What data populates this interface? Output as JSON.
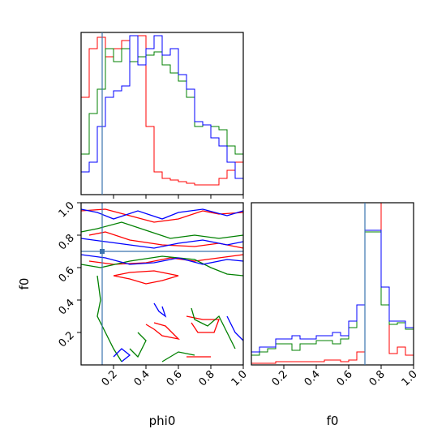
{
  "chart_data": {
    "type": "corner",
    "parameters": [
      "phi0",
      "f0"
    ],
    "xlabel": "phi0",
    "ylabel": "f0",
    "f0_xlabel": "f0",
    "axis_range": [
      0,
      1
    ],
    "ticks": [
      0.2,
      0.4,
      0.6,
      0.8,
      1.0
    ],
    "tick_labels": [
      "0.2",
      "0.4",
      "0.6",
      "0.8",
      "1.0"
    ],
    "truth": {
      "phi0": 0.13,
      "f0": 0.7,
      "color": "#3b75af"
    },
    "series_colors": {
      "red": "#ff0000",
      "green": "#008000",
      "blue": "#0000ff"
    },
    "histograms": {
      "phi0": {
        "bins": 20,
        "counts": {
          "red": [
            0.6,
            0.9,
            0.97,
            0.85,
            0.9,
            0.95,
            0.98,
            0.98,
            0.42,
            0.14,
            0.1,
            0.09,
            0.08,
            0.07,
            0.06,
            0.06,
            0.06,
            0.1,
            0.15,
            0.2
          ],
          "green": [
            0.25,
            0.5,
            0.65,
            0.9,
            0.82,
            0.9,
            0.82,
            0.85,
            0.86,
            0.88,
            0.8,
            0.75,
            0.7,
            0.6,
            0.42,
            0.43,
            0.42,
            0.4,
            0.3,
            0.25
          ],
          "blue": [
            0.14,
            0.2,
            0.42,
            0.6,
            0.64,
            0.67,
            0.98,
            0.8,
            0.9,
            0.98,
            0.86,
            0.9,
            0.74,
            0.65,
            0.45,
            0.43,
            0.35,
            0.3,
            0.2,
            0.1
          ]
        }
      },
      "f0": {
        "bins": 20,
        "counts": {
          "red": [
            0.01,
            0.01,
            0.01,
            0.02,
            0.02,
            0.02,
            0.02,
            0.02,
            0.02,
            0.03,
            0.03,
            0.02,
            0.03,
            0.08,
            1.0,
            1.0,
            0.37,
            0.07,
            0.11,
            0.06
          ],
          "green": [
            0.06,
            0.08,
            0.1,
            0.13,
            0.13,
            0.09,
            0.13,
            0.13,
            0.15,
            0.15,
            0.13,
            0.16,
            0.23,
            0.37,
            0.82,
            0.82,
            0.37,
            0.25,
            0.26,
            0.22
          ],
          "blue": [
            0.08,
            0.11,
            0.11,
            0.16,
            0.16,
            0.18,
            0.16,
            0.16,
            0.18,
            0.18,
            0.2,
            0.18,
            0.27,
            0.37,
            0.83,
            0.83,
            0.48,
            0.27,
            0.27,
            0.23
          ]
        }
      }
    },
    "contours": {
      "red": [
        [
          [
            0.0,
            0.95
          ],
          [
            0.15,
            0.96
          ],
          [
            0.3,
            0.92
          ],
          [
            0.45,
            0.88
          ],
          [
            0.6,
            0.9
          ],
          [
            0.75,
            0.95
          ],
          [
            0.85,
            0.93
          ],
          [
            1.0,
            0.94
          ]
        ],
        [
          [
            0.05,
            0.8
          ],
          [
            0.15,
            0.82
          ],
          [
            0.3,
            0.77
          ],
          [
            0.5,
            0.74
          ],
          [
            0.7,
            0.73
          ],
          [
            0.85,
            0.75
          ],
          [
            1.0,
            0.72
          ]
        ],
        [
          [
            0.05,
            0.64
          ],
          [
            0.2,
            0.62
          ],
          [
            0.4,
            0.63
          ],
          [
            0.55,
            0.66
          ],
          [
            0.7,
            0.64
          ],
          [
            0.85,
            0.66
          ],
          [
            1.0,
            0.68
          ]
        ],
        [
          [
            0.2,
            0.55
          ],
          [
            0.3,
            0.53
          ],
          [
            0.4,
            0.5
          ],
          [
            0.5,
            0.52
          ],
          [
            0.6,
            0.55
          ],
          [
            0.45,
            0.58
          ],
          [
            0.3,
            0.57
          ],
          [
            0.2,
            0.55
          ]
        ],
        [
          [
            0.4,
            0.25
          ],
          [
            0.45,
            0.22
          ],
          [
            0.5,
            0.18
          ],
          [
            0.6,
            0.16
          ],
          [
            0.52,
            0.24
          ],
          [
            0.45,
            0.26
          ]
        ],
        [
          [
            0.65,
            0.3
          ],
          [
            0.75,
            0.28
          ],
          [
            0.85,
            0.28
          ],
          [
            0.82,
            0.2
          ],
          [
            0.72,
            0.2
          ],
          [
            0.68,
            0.26
          ]
        ],
        [
          [
            0.65,
            0.05
          ],
          [
            0.8,
            0.05
          ]
        ]
      ],
      "green": [
        [
          [
            0.0,
            0.82
          ],
          [
            0.1,
            0.84
          ],
          [
            0.25,
            0.88
          ],
          [
            0.4,
            0.83
          ],
          [
            0.55,
            0.78
          ],
          [
            0.7,
            0.8
          ],
          [
            0.85,
            0.78
          ],
          [
            1.0,
            0.8
          ]
        ],
        [
          [
            0.0,
            0.62
          ],
          [
            0.12,
            0.6
          ],
          [
            0.3,
            0.64
          ],
          [
            0.5,
            0.67
          ],
          [
            0.7,
            0.65
          ],
          [
            0.8,
            0.6
          ],
          [
            0.9,
            0.56
          ],
          [
            1.0,
            0.55
          ]
        ],
        [
          [
            0.1,
            0.55
          ],
          [
            0.12,
            0.4
          ],
          [
            0.1,
            0.3
          ],
          [
            0.15,
            0.2
          ],
          [
            0.2,
            0.1
          ],
          [
            0.25,
            0.02
          ]
        ],
        [
          [
            0.3,
            0.1
          ],
          [
            0.35,
            0.05
          ],
          [
            0.4,
            0.15
          ],
          [
            0.35,
            0.2
          ]
        ],
        [
          [
            0.68,
            0.35
          ],
          [
            0.7,
            0.28
          ],
          [
            0.78,
            0.24
          ],
          [
            0.85,
            0.3
          ],
          [
            0.9,
            0.2
          ],
          [
            0.95,
            0.1
          ]
        ],
        [
          [
            0.5,
            0.02
          ],
          [
            0.6,
            0.08
          ],
          [
            0.7,
            0.06
          ]
        ]
      ],
      "blue": [
        [
          [
            0.0,
            0.96
          ],
          [
            0.1,
            0.94
          ],
          [
            0.2,
            0.9
          ],
          [
            0.35,
            0.95
          ],
          [
            0.5,
            0.9
          ],
          [
            0.6,
            0.94
          ],
          [
            0.75,
            0.96
          ],
          [
            0.9,
            0.92
          ],
          [
            1.0,
            0.95
          ]
        ],
        [
          [
            0.0,
            0.78
          ],
          [
            0.15,
            0.76
          ],
          [
            0.3,
            0.74
          ],
          [
            0.45,
            0.72
          ],
          [
            0.6,
            0.75
          ],
          [
            0.75,
            0.77
          ],
          [
            0.9,
            0.74
          ],
          [
            1.0,
            0.76
          ]
        ],
        [
          [
            0.0,
            0.68
          ],
          [
            0.15,
            0.66
          ],
          [
            0.3,
            0.62
          ],
          [
            0.45,
            0.63
          ],
          [
            0.6,
            0.66
          ],
          [
            0.75,
            0.62
          ],
          [
            0.9,
            0.65
          ],
          [
            1.0,
            0.64
          ]
        ],
        [
          [
            0.45,
            0.38
          ],
          [
            0.48,
            0.33
          ],
          [
            0.52,
            0.3
          ],
          [
            0.5,
            0.36
          ]
        ],
        [
          [
            0.2,
            0.05
          ],
          [
            0.25,
            0.1
          ],
          [
            0.3,
            0.06
          ],
          [
            0.25,
            0.02
          ]
        ],
        [
          [
            0.9,
            0.3
          ],
          [
            0.95,
            0.2
          ],
          [
            1.0,
            0.15
          ]
        ]
      ]
    }
  }
}
